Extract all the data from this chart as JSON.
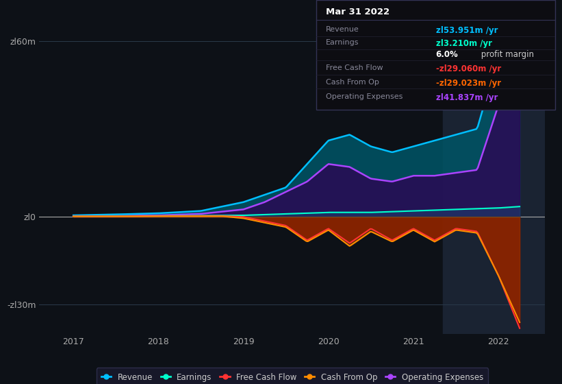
{
  "bg_color": "#0d1117",
  "plot_bg_color": "#0d1117",
  "highlight_bg": "#1a2332",
  "grid_color": "#2a3a4a",
  "ylim": [
    -40,
    70
  ],
  "yticks": [
    -30,
    0,
    60
  ],
  "ytick_labels": [
    "-zl30m",
    "zl0",
    "zl60m"
  ],
  "xlim_min": 2016.6,
  "xlim_max": 2022.55,
  "xticks": [
    2017,
    2018,
    2019,
    2020,
    2021,
    2022
  ],
  "highlight_x_start": 2021.35,
  "tooltip": {
    "title": "Mar 31 2022",
    "rows": [
      {
        "label": "Revenue",
        "value": "zl53.951m /yr",
        "color": "#00bfff"
      },
      {
        "label": "Earnings",
        "value": "zl3.210m /yr",
        "color": "#00ffcc"
      },
      {
        "label": "",
        "value": "6.0%",
        "color": "#ffffff",
        "suffix": " profit margin"
      },
      {
        "label": "Free Cash Flow",
        "value": "-zl29.060m /yr",
        "color": "#ff3333"
      },
      {
        "label": "Cash From Op",
        "value": "-zl29.023m /yr",
        "color": "#ff6600"
      },
      {
        "label": "Operating Expenses",
        "value": "zl41.837m /yr",
        "color": "#aa44ff"
      }
    ]
  },
  "series": {
    "revenue": {
      "color": "#00bfff",
      "fill_color": "#005566",
      "label": "Revenue"
    },
    "earnings": {
      "color": "#00ffcc",
      "fill_color": "#00ffcc",
      "label": "Earnings"
    },
    "free_cash_flow": {
      "color": "#ff3333",
      "fill_color": "#7a0000",
      "label": "Free Cash Flow"
    },
    "cash_from_op": {
      "color": "#ff8c00",
      "fill_color": "#994400",
      "label": "Cash From Op"
    },
    "operating_expenses": {
      "color": "#aa44ff",
      "fill_color": "#2a0a55",
      "label": "Operating Expenses"
    }
  },
  "legend_items": [
    {
      "label": "Revenue",
      "color": "#00bfff"
    },
    {
      "label": "Earnings",
      "color": "#00ffcc"
    },
    {
      "label": "Free Cash Flow",
      "color": "#ff3333"
    },
    {
      "label": "Cash From Op",
      "color": "#ff8c00"
    },
    {
      "label": "Operating Expenses",
      "color": "#aa44ff"
    }
  ]
}
